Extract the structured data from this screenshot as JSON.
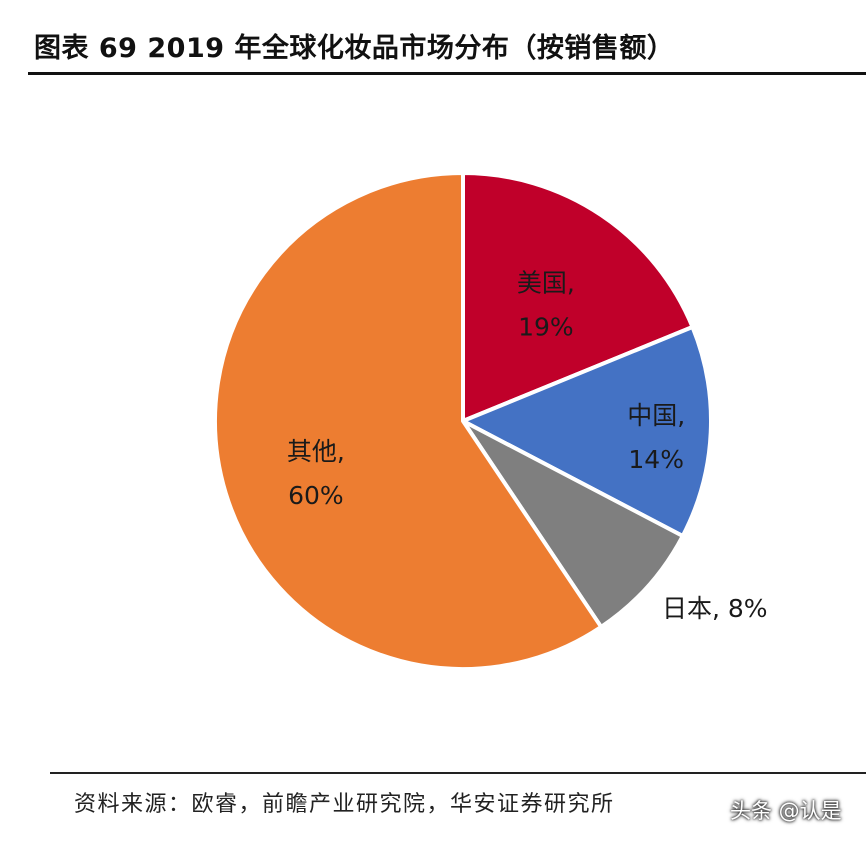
{
  "title": "图表 69 2019 年全球化妆品市场分布（按销售额）",
  "source": "资料来源：欧睿，前瞻产业研究院，华安证券研究所",
  "watermark": "头条 @认是",
  "colors": {
    "us": "#c0002a",
    "china": "#4472c4",
    "japan": "#7f7f7f",
    "others": "#ed7d31",
    "slice_border": "#ffffff"
  },
  "chart_data": {
    "type": "pie",
    "title": "图表 69 2019 年全球化妆品市场分布（按销售额）",
    "slices": [
      {
        "label": "美国",
        "value": 19,
        "display": "19%",
        "color": "#c0002a"
      },
      {
        "label": "中国",
        "value": 14,
        "display": "14%",
        "color": "#4472c4"
      },
      {
        "label": "日本",
        "value": 8,
        "display": "8%",
        "color": "#7f7f7f"
      },
      {
        "label": "其他",
        "value": 60,
        "display": "60%",
        "color": "#ed7d31"
      }
    ],
    "start": "12 o'clock",
    "direction": "clockwise"
  }
}
